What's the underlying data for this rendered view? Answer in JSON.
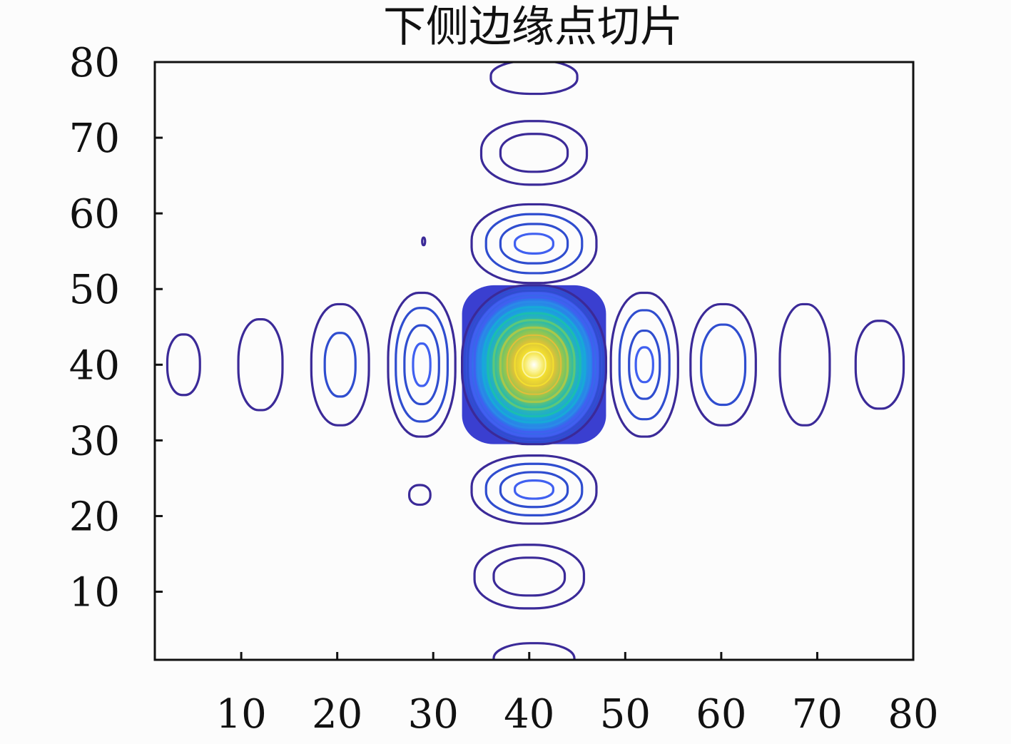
{
  "chart_data": {
    "type": "contour",
    "title": "下侧边缘点切片",
    "xlim": [
      1,
      80
    ],
    "ylim": [
      1,
      80
    ],
    "xticks": [
      10,
      20,
      30,
      40,
      50,
      60,
      70,
      80
    ],
    "yticks": [
      10,
      20,
      30,
      40,
      50,
      60,
      70,
      80
    ],
    "grid": false,
    "colormap": [
      "#3b2a98",
      "#2f4dcf",
      "#4060f0",
      "#2a8ae8",
      "#17a9d8",
      "#1bbdb0",
      "#5cc87a",
      "#a8c84a",
      "#e2be3a",
      "#f3df2f",
      "#fbf5a0"
    ],
    "peak": {
      "x": 40.5,
      "y": 40,
      "description_value": 1.0
    },
    "contours": [
      {
        "cx": 40.5,
        "cy": 40,
        "rx": 7.5,
        "ry": 10.5,
        "level": 0
      },
      {
        "cx": 40.5,
        "cy": 40,
        "rx": 7.2,
        "ry": 10.2,
        "level": 1
      },
      {
        "cx": 40.5,
        "cy": 40,
        "rx": 6.9,
        "ry": 9.8,
        "level": 1
      },
      {
        "cx": 40.5,
        "cy": 40,
        "rx": 6.6,
        "ry": 9.4,
        "level": 2
      },
      {
        "cx": 40.5,
        "cy": 40,
        "rx": 6.2,
        "ry": 8.9,
        "level": 2
      },
      {
        "cx": 40.5,
        "cy": 40,
        "rx": 5.8,
        "ry": 8.3,
        "level": 3
      },
      {
        "cx": 40.5,
        "cy": 40,
        "rx": 5.3,
        "ry": 7.6,
        "level": 4
      },
      {
        "cx": 40.5,
        "cy": 40,
        "rx": 4.8,
        "ry": 6.8,
        "level": 5
      },
      {
        "cx": 40.5,
        "cy": 40,
        "rx": 4.2,
        "ry": 5.9,
        "level": 6
      },
      {
        "cx": 40.5,
        "cy": 40,
        "rx": 3.5,
        "ry": 4.9,
        "level": 7
      },
      {
        "cx": 40.5,
        "cy": 40,
        "rx": 2.8,
        "ry": 3.9,
        "level": 8
      },
      {
        "cx": 40.5,
        "cy": 40,
        "rx": 2.0,
        "ry": 2.8,
        "level": 9
      },
      {
        "cx": 40.5,
        "cy": 40,
        "rx": 1.2,
        "ry": 1.7,
        "level": 10
      },
      {
        "cx": 40.5,
        "cy": 40,
        "rx": 0.6,
        "ry": 0.8,
        "level": 10
      },
      {
        "cx": 40.5,
        "cy": 78,
        "rx": 4.5,
        "ry": 2.2,
        "level": 0
      },
      {
        "cx": 40.5,
        "cy": 68,
        "rx": 5.5,
        "ry": 4.2,
        "level": 0
      },
      {
        "cx": 40.5,
        "cy": 68,
        "rx": 3.5,
        "ry": 2.5,
        "level": 0
      },
      {
        "cx": 40.5,
        "cy": 56,
        "rx": 6.5,
        "ry": 5.2,
        "level": 0
      },
      {
        "cx": 40.5,
        "cy": 56,
        "rx": 5.0,
        "ry": 3.9,
        "level": 1
      },
      {
        "cx": 40.5,
        "cy": 56,
        "rx": 3.5,
        "ry": 2.6,
        "level": 1
      },
      {
        "cx": 40.5,
        "cy": 56,
        "rx": 2.0,
        "ry": 1.3,
        "level": 2
      },
      {
        "cx": 40.5,
        "cy": 23.5,
        "rx": 6.5,
        "ry": 4.5,
        "level": 0
      },
      {
        "cx": 40.5,
        "cy": 23.5,
        "rx": 5.0,
        "ry": 3.4,
        "level": 1
      },
      {
        "cx": 40.5,
        "cy": 23.5,
        "rx": 3.5,
        "ry": 2.3,
        "level": 1
      },
      {
        "cx": 40.5,
        "cy": 23.5,
        "rx": 2.0,
        "ry": 1.2,
        "level": 2
      },
      {
        "cx": 40.0,
        "cy": 12,
        "rx": 5.7,
        "ry": 4.2,
        "level": 0
      },
      {
        "cx": 40.0,
        "cy": 12,
        "rx": 3.7,
        "ry": 2.5,
        "level": 0
      },
      {
        "cx": 40.5,
        "cy": 1.0,
        "rx": 4.2,
        "ry": 2.2,
        "level": 0
      },
      {
        "cx": 28.8,
        "cy": 40,
        "rx": 3.5,
        "ry": 9.5,
        "level": 0
      },
      {
        "cx": 28.8,
        "cy": 40,
        "rx": 2.7,
        "ry": 7.5,
        "level": 1
      },
      {
        "cx": 28.8,
        "cy": 40,
        "rx": 1.8,
        "ry": 5.2,
        "level": 1
      },
      {
        "cx": 28.8,
        "cy": 40,
        "rx": 0.9,
        "ry": 2.8,
        "level": 2
      },
      {
        "cx": 20.3,
        "cy": 40,
        "rx": 3.0,
        "ry": 8.0,
        "level": 0
      },
      {
        "cx": 20.3,
        "cy": 40,
        "rx": 1.6,
        "ry": 4.2,
        "level": 1
      },
      {
        "cx": 12.0,
        "cy": 40,
        "rx": 2.3,
        "ry": 6.0,
        "level": 0
      },
      {
        "cx": 4.0,
        "cy": 40,
        "rx": 1.7,
        "ry": 4.0,
        "level": 0
      },
      {
        "cx": 52.0,
        "cy": 40,
        "rx": 3.5,
        "ry": 9.5,
        "level": 0
      },
      {
        "cx": 52.0,
        "cy": 40,
        "rx": 2.6,
        "ry": 7.2,
        "level": 1
      },
      {
        "cx": 52.0,
        "cy": 40,
        "rx": 1.6,
        "ry": 4.5,
        "level": 1
      },
      {
        "cx": 52.0,
        "cy": 40,
        "rx": 0.9,
        "ry": 2.3,
        "level": 2
      },
      {
        "cx": 60.2,
        "cy": 40,
        "rx": 3.4,
        "ry": 8.0,
        "level": 0
      },
      {
        "cx": 60.2,
        "cy": 40,
        "rx": 2.3,
        "ry": 5.3,
        "level": 1
      },
      {
        "cx": 68.7,
        "cy": 40,
        "rx": 2.6,
        "ry": 8.0,
        "level": 0
      },
      {
        "cx": 76.5,
        "cy": 40,
        "rx": 2.5,
        "ry": 5.8,
        "level": 0
      },
      {
        "cx": 28.6,
        "cy": 22.8,
        "rx": 1.1,
        "ry": 1.3,
        "level": 0
      },
      {
        "cx": 29.0,
        "cy": 56.3,
        "rx": 0.15,
        "ry": 0.5,
        "level": 0
      }
    ]
  }
}
